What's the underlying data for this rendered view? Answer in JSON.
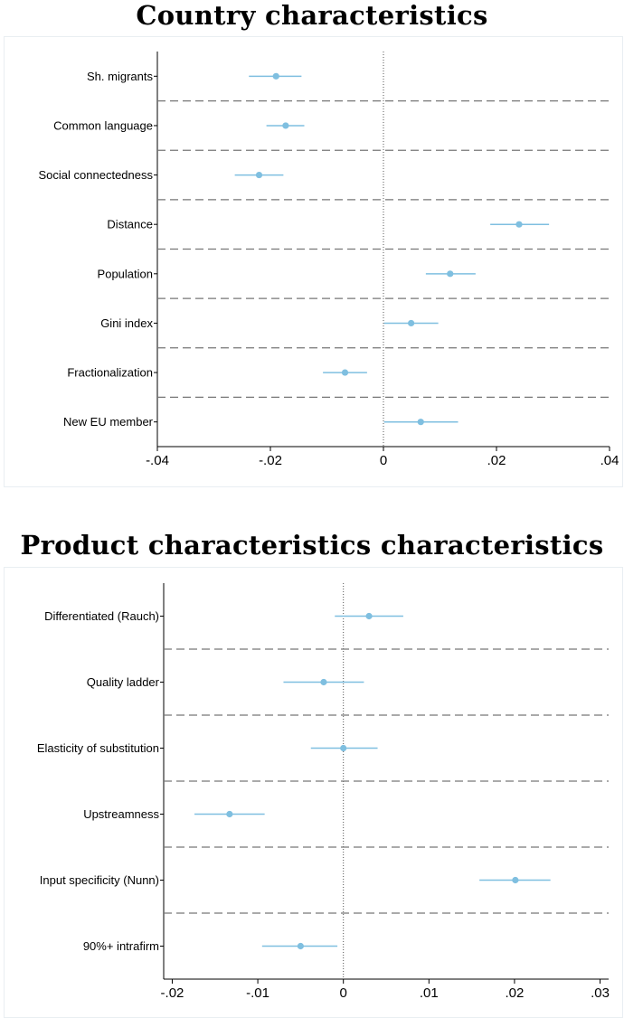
{
  "chart_data": [
    {
      "type": "coefficient-plot",
      "title": "Country characteristics",
      "xlim": [
        -0.04,
        0.04
      ],
      "xticks": [
        "-.04",
        "-.02",
        "0",
        ".02",
        ".04"
      ],
      "xtick_values": [
        -0.04,
        -0.02,
        0,
        0.02,
        0.04
      ],
      "zero_line": "dotted",
      "separators": "dashed",
      "marker_color": "#7fbfe0",
      "rows": [
        {
          "label": "Sh. migrants",
          "estimate": -0.019,
          "ci": [
            -0.0238,
            -0.0145
          ]
        },
        {
          "label": "Common language",
          "estimate": -0.0173,
          "ci": [
            -0.0207,
            -0.014
          ]
        },
        {
          "label": "Social connectedness",
          "estimate": -0.022,
          "ci": [
            -0.0263,
            -0.0177
          ]
        },
        {
          "label": "Distance",
          "estimate": 0.024,
          "ci": [
            0.0189,
            0.0293
          ]
        },
        {
          "label": "Population",
          "estimate": 0.0118,
          "ci": [
            0.0075,
            0.0163
          ]
        },
        {
          "label": "Gini index",
          "estimate": 0.0049,
          "ci": [
            0.0001,
            0.0097
          ]
        },
        {
          "label": "Fractionalization",
          "estimate": -0.0068,
          "ci": [
            -0.0107,
            -0.0029
          ]
        },
        {
          "label": "New EU member",
          "estimate": 0.0066,
          "ci": [
            0.0001,
            0.0132
          ]
        }
      ]
    },
    {
      "type": "coefficient-plot",
      "title": "Product characteristics characteristics",
      "xlim": [
        -0.021,
        0.031
      ],
      "xticks": [
        "-.02",
        "-.01",
        "0",
        ".01",
        ".02",
        ".03"
      ],
      "xtick_values": [
        -0.02,
        -0.01,
        0,
        0.01,
        0.02,
        0.03
      ],
      "zero_line": "dotted",
      "separators": "dashed",
      "marker_color": "#7fbfe0",
      "rows": [
        {
          "label": "Differentiated (Rauch)",
          "estimate": 0.003,
          "ci": [
            -0.001,
            0.007
          ]
        },
        {
          "label": "Quality ladder",
          "estimate": -0.0023,
          "ci": [
            -0.007,
            0.0024
          ]
        },
        {
          "label": "Elasticity of substitution",
          "estimate": 0.0,
          "ci": [
            -0.0038,
            0.004
          ]
        },
        {
          "label": "Upstreamness",
          "estimate": -0.0133,
          "ci": [
            -0.0174,
            -0.0092
          ]
        },
        {
          "label": "Input specificity (Nunn)",
          "estimate": 0.0201,
          "ci": [
            0.0159,
            0.0242
          ]
        },
        {
          "label": "90%+ intrafirm",
          "estimate": -0.005,
          "ci": [
            -0.0095,
            -0.0007
          ]
        }
      ]
    }
  ]
}
